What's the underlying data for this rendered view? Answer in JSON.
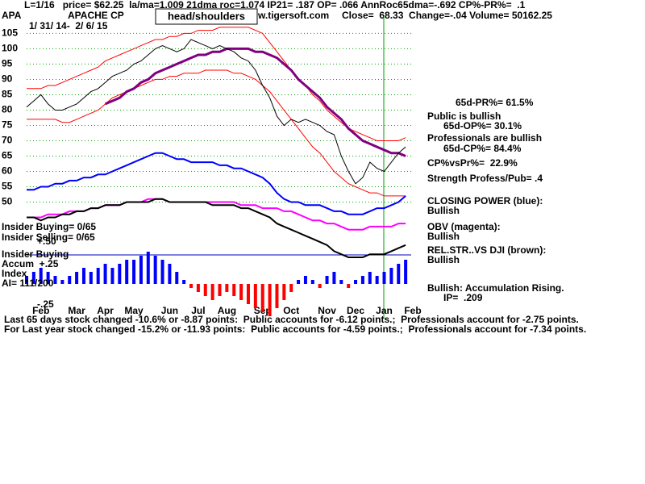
{
  "chart_data": {
    "type": "line",
    "ticker": "APA",
    "company": "APACHE CP",
    "pattern": "head/shoulders",
    "header_line": "L=1/16   price= $62.25  la/ma=1.009 21dma roc=1.074 IP21= .187 OP= .066 AnnRoc65dma=-.692 CP%-PR%=  .1",
    "site": "w.tigersoft.com",
    "quote": "Close=  68.33  Change=-.04 Volume= 50162.25",
    "date_range": "1/ 31/ 14-  2/ 6/ 15",
    "categories": [
      null,
      null,
      "Feb",
      null,
      null,
      null,
      null,
      "Mar",
      null,
      null,
      null,
      "Apr",
      null,
      null,
      null,
      "May",
      null,
      null,
      null,
      null,
      "Jun",
      null,
      null,
      null,
      "Jul",
      null,
      null,
      null,
      "Aug",
      null,
      null,
      null,
      null,
      "Sep",
      null,
      null,
      null,
      "Oct",
      null,
      null,
      null,
      null,
      "Nov",
      null,
      null,
      null,
      "Dec",
      null,
      null,
      null,
      "Jan",
      null,
      null,
      null,
      "Feb"
    ],
    "ylim": [
      12,
      108
    ],
    "yticks": [
      50,
      55,
      60,
      65,
      70,
      75,
      80,
      85,
      90,
      95,
      100,
      105
    ],
    "y2lim": [
      -0.43,
      3.22
    ],
    "grid": true,
    "series": [
      {
        "color": "#ff0000",
        "values": [
          87,
          87,
          87,
          88,
          88,
          89,
          90,
          91,
          92,
          93,
          94,
          96,
          97,
          98,
          99,
          100,
          101,
          102,
          103,
          103,
          104,
          104,
          105,
          105,
          106,
          106,
          106,
          107,
          107,
          107,
          107,
          107,
          106,
          105,
          102,
          99,
          96,
          93,
          90,
          88,
          85,
          83,
          80,
          78,
          76,
          74,
          73,
          72,
          71,
          70,
          70,
          70,
          70,
          71,
          null
        ]
      },
      {
        "color": "#ff0000",
        "values": [
          77,
          77,
          77,
          77,
          77,
          76,
          76,
          77,
          78,
          79,
          80,
          82,
          84,
          85,
          86,
          87,
          88,
          89,
          90,
          90,
          91,
          91,
          92,
          92,
          92,
          93,
          93,
          93,
          93,
          92,
          92,
          91,
          90,
          88,
          86,
          83,
          80,
          77,
          74,
          71,
          68,
          66,
          63,
          60,
          58,
          56,
          55,
          54,
          53,
          53,
          52,
          52,
          52,
          52,
          null
        ]
      },
      {
        "color": "#800080",
        "values": [
          null,
          null,
          null,
          null,
          null,
          null,
          null,
          null,
          null,
          null,
          null,
          82,
          83,
          84,
          86,
          87,
          89,
          90,
          92,
          93,
          94,
          95,
          96,
          97,
          98,
          98,
          99,
          99,
          100,
          100,
          100,
          100,
          99,
          99,
          98,
          97,
          95,
          93,
          90,
          88,
          86,
          84,
          81,
          79,
          77,
          74,
          72,
          70,
          69,
          68,
          67,
          66,
          66,
          65,
          null
        ]
      },
      {
        "color": "#000000",
        "values": [
          81,
          83,
          85,
          82,
          80,
          80,
          81,
          82,
          84,
          86,
          87,
          89,
          91,
          92,
          93,
          95,
          96,
          98,
          100,
          101,
          100,
          99,
          100,
          103,
          102,
          101,
          100,
          101,
          100,
          99,
          97,
          96,
          93,
          88,
          84,
          78,
          75,
          77,
          76,
          77,
          76,
          75,
          73,
          72,
          65,
          60,
          56,
          58,
          63,
          61,
          60,
          63,
          66,
          68,
          null
        ]
      },
      {
        "color": "#0000ff",
        "values": [
          54,
          54,
          55,
          55,
          56,
          56,
          57,
          57,
          58,
          58,
          59,
          59,
          60,
          61,
          62,
          63,
          64,
          65,
          66,
          66,
          65,
          64,
          64,
          63,
          63,
          63,
          63,
          62,
          62,
          61,
          61,
          60,
          59,
          58,
          56,
          53,
          51,
          50,
          50,
          49,
          49,
          49,
          48,
          47,
          47,
          46,
          46,
          46,
          47,
          48,
          48,
          49,
          50,
          52,
          null
        ]
      },
      {
        "color": "#ff00ff",
        "values": [
          45,
          45,
          45,
          46,
          46,
          46,
          47,
          47,
          47,
          48,
          48,
          49,
          49,
          49,
          50,
          50,
          50,
          51,
          51,
          51,
          50,
          50,
          50,
          50,
          50,
          50,
          50,
          50,
          50,
          50,
          49,
          49,
          49,
          48,
          48,
          48,
          47,
          47,
          46,
          45,
          44,
          44,
          43,
          43,
          42,
          41,
          41,
          41,
          42,
          42,
          42,
          42,
          43,
          43,
          null
        ]
      },
      {
        "color": "#000000",
        "values": [
          45,
          45,
          44,
          45,
          45,
          46,
          46,
          47,
          47,
          48,
          48,
          49,
          49,
          49,
          50,
          50,
          50,
          50,
          51,
          51,
          50,
          50,
          50,
          50,
          50,
          50,
          49,
          49,
          49,
          49,
          48,
          48,
          47,
          46,
          45,
          43,
          42,
          41,
          40,
          39,
          38,
          37,
          36,
          34,
          33,
          32,
          32,
          32,
          33,
          33,
          33,
          34,
          35,
          36,
          null
        ]
      },
      {
        "axis": "y2",
        "color": "#0000ff",
        "negative_color": "#ff0000",
        "values": [
          0.1,
          0.15,
          0.2,
          0.15,
          0.1,
          0.05,
          0.1,
          0.15,
          0.2,
          0.15,
          0.2,
          0.25,
          0.2,
          0.25,
          0.3,
          0.3,
          0.35,
          0.4,
          0.35,
          0.3,
          0.25,
          0.15,
          0.05,
          -0.05,
          -0.1,
          -0.15,
          -0.2,
          -0.15,
          -0.1,
          -0.15,
          -0.2,
          -0.25,
          -0.3,
          -0.35,
          -0.4,
          -0.3,
          -0.2,
          -0.1,
          0.05,
          0.1,
          0.05,
          -0.05,
          0.1,
          0.15,
          0.05,
          -0.05,
          0.05,
          0.1,
          0.15,
          0.1,
          0.15,
          0.2,
          0.25,
          0.3,
          null
        ]
      }
    ],
    "annotations": [
      "65d-PR%= 61.5%",
      "Public is bullish",
      "65d-OP%= 30.1%",
      "Professionals are bullish",
      "65d-CP%= 84.4%",
      "CP%vsPr%=  22.9%",
      "Strength Profess/Pub= .4",
      "CLOSING POWER (blue):",
      "Bullish",
      "OBV (magenta):",
      "Bullish",
      "REL.STR..VS DJI (brown):",
      "Bullish",
      "Bullish: Accumulation Rising.",
      "IP=  .209"
    ],
    "left_notes": [
      "Insider Buying= 0/65",
      "Insider Selling= 0/65",
      "+.50",
      "Insider Buying",
      "Accum  +.25",
      "Index",
      "AI= 111/200",
      "-.25"
    ],
    "footer": [
      "Last 65 days stock changed -10.6% or -8.87 points:  Public accounts for -6.12 points.;  Professionals account for -2.75 points.",
      "For Last year stock changed -15.2% or -11.93 points:  Public accounts for -4.59 points.;  Professionals account for -7.34 points."
    ]
  }
}
